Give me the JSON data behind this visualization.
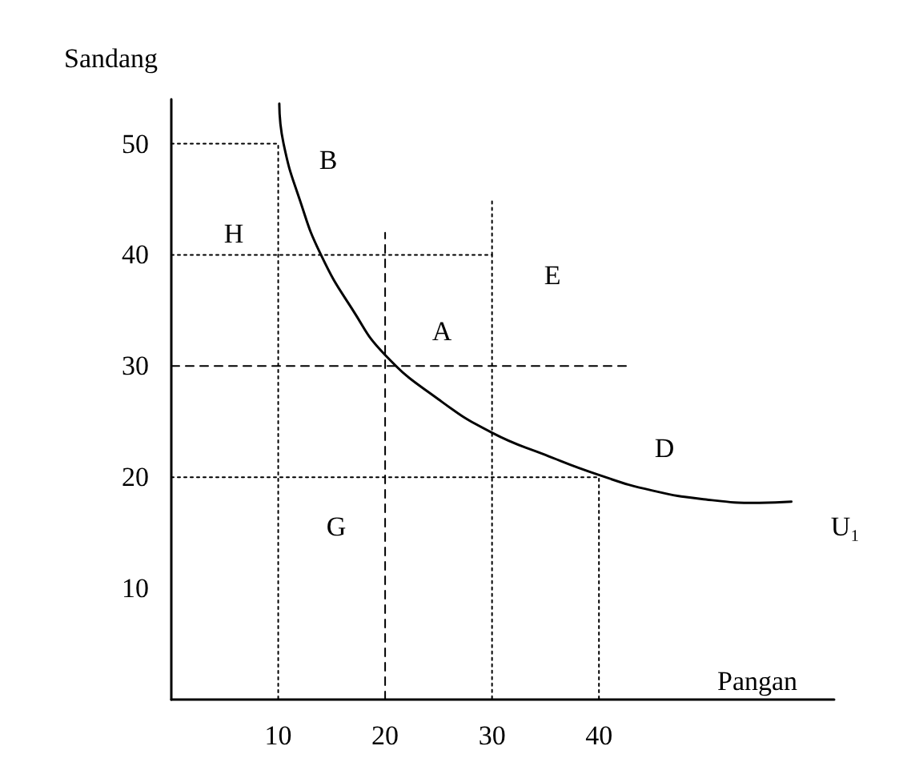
{
  "chart_data": {
    "type": "line",
    "xlabel": "Pangan",
    "ylabel": "Sandang",
    "xlim": [
      0,
      62
    ],
    "ylim": [
      0,
      54
    ],
    "xticks": [
      10,
      20,
      30,
      40
    ],
    "yticks": [
      10,
      20,
      30,
      40,
      50
    ],
    "grid": false,
    "marker": "none",
    "series": [
      {
        "color": "#000000",
        "line_style": "solid",
        "x": [
          10.1,
          10.5,
          12,
          14,
          17,
          20,
          25,
          30,
          35,
          40,
          45,
          50,
          55,
          58
        ],
        "values": [
          53.6,
          50,
          45,
          40,
          35,
          31,
          27,
          24,
          22,
          20.2,
          18.8,
          18,
          17.7,
          17.8
        ]
      },
      {
        "color": "#000000",
        "line_style": "dotted",
        "x": [
          0,
          10,
          10
        ],
        "values": [
          50,
          50,
          0
        ]
      },
      {
        "color": "#000000",
        "line_style": "dotted",
        "x": [
          0,
          30,
          30
        ],
        "values": [
          40,
          40,
          0
        ]
      },
      {
        "color": "#000000",
        "line_style": "dotted",
        "x": [
          30,
          30
        ],
        "values": [
          40,
          45
        ]
      },
      {
        "color": "#000000",
        "line_style": "dotted",
        "x": [
          0,
          40,
          40
        ],
        "values": [
          20,
          20,
          0
        ]
      },
      {
        "color": "#000000",
        "line_style": "dashed",
        "x": [
          20,
          20
        ],
        "values": [
          0,
          42
        ]
      },
      {
        "color": "#000000",
        "line_style": "dashed",
        "x": [
          0,
          43
        ],
        "values": [
          30,
          30
        ]
      }
    ],
    "annotations": [
      "B",
      "H",
      "E",
      "A",
      "D",
      "G",
      "U₁"
    ]
  }
}
